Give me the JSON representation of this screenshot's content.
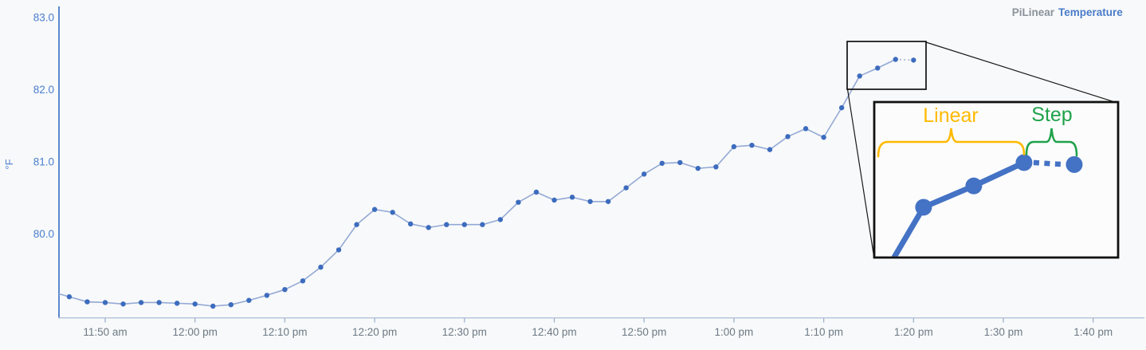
{
  "page": {
    "background": "#f8f9fa"
  },
  "legend": {
    "type_label": "PiLinear",
    "name_label": "Temperature",
    "type_color": "#8a929b",
    "name_color": "#4a7cc9"
  },
  "axes": {
    "y_axis_color": "#5b87ce",
    "x_axis_color": "#b3c3db",
    "tick_color": "#9db1d0",
    "y_label_color": "#4a7ed0",
    "x_label_color": "#6d7a85"
  },
  "chart_data": {
    "type": "line",
    "title": "",
    "xlabel": "",
    "ylabel": "°F",
    "grid": false,
    "legend_position": "top-right",
    "ylim": [
      78.85,
      83.15
    ],
    "xlim": [
      "11:44 am",
      "1:46 pm"
    ],
    "y_ticks": [
      {
        "label": "83.0",
        "value": 83.0
      },
      {
        "label": "82.0",
        "value": 82.0
      },
      {
        "label": "81.0",
        "value": 81.0
      },
      {
        "label": "80.0",
        "value": 80.0
      }
    ],
    "x_tick_labels": [
      "11:50 am",
      "12:00 pm",
      "12:10 pm",
      "12:20 pm",
      "12:30 pm",
      "12:40 pm",
      "12:50 pm",
      "1:00 pm",
      "1:10 pm",
      "1:20 pm",
      "1:30 pm",
      "1:40 pm"
    ],
    "series": [
      {
        "name": "Temperature",
        "line_color": "#93a9d5",
        "marker_color": "#3d6cbe",
        "last_segment_style": "dotted",
        "last_point_meaning": "step-interpolated projection",
        "points": [
          {
            "time": "11:44 am",
            "value": 79.2,
            "clipped_at_axis": true
          },
          {
            "time": "11:46 am",
            "value": 79.13
          },
          {
            "time": "11:48 am",
            "value": 79.06
          },
          {
            "time": "11:50 am",
            "value": 79.05
          },
          {
            "time": "11:52 am",
            "value": 79.03
          },
          {
            "time": "11:54 am",
            "value": 79.05
          },
          {
            "time": "11:56 am",
            "value": 79.05
          },
          {
            "time": "11:58 am",
            "value": 79.04
          },
          {
            "time": "12:00 pm",
            "value": 79.03
          },
          {
            "time": "12:02 pm",
            "value": 79.0
          },
          {
            "time": "12:04 pm",
            "value": 79.02
          },
          {
            "time": "12:06 pm",
            "value": 79.08
          },
          {
            "time": "12:08 pm",
            "value": 79.15
          },
          {
            "time": "12:10 pm",
            "value": 79.23
          },
          {
            "time": "12:12 pm",
            "value": 79.35
          },
          {
            "time": "12:14 pm",
            "value": 79.54
          },
          {
            "time": "12:16 pm",
            "value": 79.78
          },
          {
            "time": "12:18 pm",
            "value": 80.13
          },
          {
            "time": "12:20 pm",
            "value": 80.34
          },
          {
            "time": "12:22 pm",
            "value": 80.3
          },
          {
            "time": "12:24 pm",
            "value": 80.14
          },
          {
            "time": "12:26 pm",
            "value": 80.09
          },
          {
            "time": "12:28 pm",
            "value": 80.13
          },
          {
            "time": "12:30 pm",
            "value": 80.13
          },
          {
            "time": "12:32 pm",
            "value": 80.13
          },
          {
            "time": "12:34 pm",
            "value": 80.2
          },
          {
            "time": "12:36 pm",
            "value": 80.44
          },
          {
            "time": "12:38 pm",
            "value": 80.58
          },
          {
            "time": "12:40 pm",
            "value": 80.47
          },
          {
            "time": "12:42 pm",
            "value": 80.51
          },
          {
            "time": "12:44 pm",
            "value": 80.45
          },
          {
            "time": "12:46 pm",
            "value": 80.45
          },
          {
            "time": "12:48 pm",
            "value": 80.64
          },
          {
            "time": "12:50 pm",
            "value": 80.83
          },
          {
            "time": "12:52 pm",
            "value": 80.98
          },
          {
            "time": "12:54 pm",
            "value": 80.99
          },
          {
            "time": "12:56 pm",
            "value": 80.91
          },
          {
            "time": "12:58 pm",
            "value": 80.93
          },
          {
            "time": "1:00 pm",
            "value": 81.21
          },
          {
            "time": "1:02 pm",
            "value": 81.23
          },
          {
            "time": "1:04 pm",
            "value": 81.17
          },
          {
            "time": "1:06 pm",
            "value": 81.35
          },
          {
            "time": "1:08 pm",
            "value": 81.46
          },
          {
            "time": "1:10 pm",
            "value": 81.34
          },
          {
            "time": "1:12 pm",
            "value": 81.75
          },
          {
            "time": "1:14 pm",
            "value": 82.19
          },
          {
            "time": "1:16 pm",
            "value": 82.3
          },
          {
            "time": "1:18 pm",
            "value": 82.42
          },
          {
            "time": "1:20 pm",
            "value": 82.41
          }
        ]
      }
    ]
  },
  "inset": {
    "linear_label": "Linear",
    "step_label": "Step",
    "linear_color": "#ffb900",
    "step_color": "#1fa24a",
    "line_color": "#4472c4",
    "border_color": "#111111",
    "magnified_times": [
      "1:14 pm",
      "1:16 pm",
      "1:18 pm",
      "1:20 pm"
    ]
  }
}
